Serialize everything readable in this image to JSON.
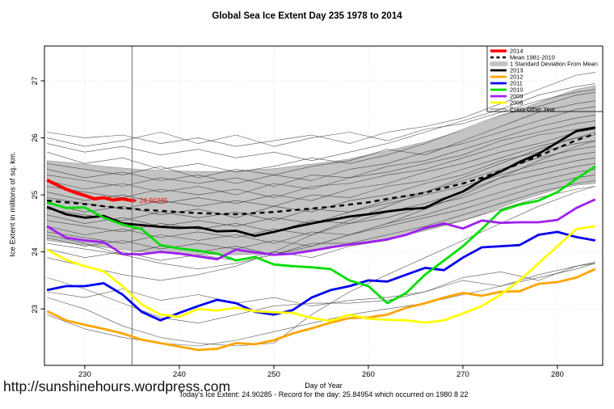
{
  "title": "Global Sea Ice Extent Day 235 1978 to 2014",
  "footer": {
    "url": "http://sunshinehours.wordpress.com",
    "subtitle": "Today's Ice Extent: 24.90285  - Record for the day: 25.84954 which occurred on 1980 8 22"
  },
  "chart_data": {
    "type": "line",
    "title": "Global Sea Ice Extent Day 235 1978 to 2014",
    "xlabel": "Day of Year",
    "ylabel": "Ice Extent in millions of sq. km.",
    "xlim": [
      225.73,
      284.79
    ],
    "ylim": [
      22.01,
      27.61
    ],
    "xticks": [
      230,
      240,
      250,
      260,
      270,
      280
    ],
    "yticks": [
      23,
      24,
      25,
      26,
      27
    ],
    "grid": true,
    "day_marker": 235,
    "annotation": {
      "text": "24.90285",
      "x": 235.5,
      "y": 24.9,
      "color": "#FF0000"
    },
    "x_main": [
      226,
      228,
      230,
      232,
      234,
      236,
      238,
      240,
      242,
      244,
      246,
      248,
      250,
      252,
      254,
      256,
      258,
      260,
      262,
      264,
      266,
      268,
      270,
      272,
      274,
      276,
      278,
      280,
      282,
      284
    ],
    "band": {
      "label": "1 Standard Deviation From Mean",
      "color": "#C4C4C4",
      "edge_color": "#8F8F8F",
      "upper": [
        25.6,
        25.57,
        25.54,
        25.5,
        25.47,
        25.44,
        25.43,
        25.42,
        25.41,
        25.41,
        25.42,
        25.44,
        25.46,
        25.5,
        25.54,
        25.58,
        25.63,
        25.7,
        25.77,
        25.85,
        25.93,
        26.03,
        26.13,
        26.25,
        26.38,
        26.5,
        26.62,
        26.74,
        26.85,
        26.92
      ],
      "lower": [
        24.2,
        24.16,
        24.12,
        24.08,
        24.04,
        24.0,
        23.98,
        23.97,
        23.96,
        23.95,
        23.95,
        23.96,
        23.98,
        24.0,
        24.04,
        24.08,
        24.12,
        24.17,
        24.23,
        24.3,
        24.37,
        24.46,
        24.55,
        24.66,
        24.78,
        24.9,
        25.0,
        25.1,
        25.17,
        25.2
      ]
    },
    "series": [
      {
        "name": "2013",
        "color": "#000000",
        "width": 2.8,
        "dash": "",
        "values": [
          24.79,
          24.66,
          24.6,
          24.63,
          24.5,
          24.47,
          24.44,
          24.42,
          24.43,
          24.36,
          24.37,
          24.28,
          24.35,
          24.43,
          24.5,
          24.56,
          24.62,
          24.66,
          24.71,
          24.75,
          24.77,
          24.93,
          25.06,
          25.26,
          25.41,
          25.58,
          25.72,
          25.92,
          26.12,
          26.18
        ]
      },
      {
        "name": "Mean 1981-2010",
        "color": "#000000",
        "width": 2.4,
        "dash": "6,5",
        "values": [
          24.9,
          24.87,
          24.84,
          24.8,
          24.77,
          24.74,
          24.72,
          24.7,
          24.68,
          24.67,
          24.66,
          24.68,
          24.7,
          24.73,
          24.76,
          24.79,
          24.83,
          24.87,
          24.93,
          24.98,
          25.04,
          25.12,
          25.2,
          25.3,
          25.42,
          25.55,
          25.68,
          25.82,
          25.96,
          26.07
        ]
      },
      {
        "name": "2012",
        "color": "#FFA500",
        "width": 2.8,
        "dash": "",
        "values": [
          22.96,
          22.8,
          22.72,
          22.65,
          22.57,
          22.46,
          22.4,
          22.34,
          22.28,
          22.3,
          22.4,
          22.38,
          22.45,
          22.57,
          22.66,
          22.76,
          22.84,
          22.85,
          22.9,
          23.02,
          23.1,
          23.2,
          23.28,
          23.23,
          23.3,
          23.31,
          23.44,
          23.47,
          23.55,
          23.7
        ]
      },
      {
        "name": "2011",
        "color": "#0000EE",
        "width": 2.8,
        "dash": "",
        "values": [
          23.33,
          23.4,
          23.4,
          23.45,
          23.25,
          22.95,
          22.8,
          22.93,
          23.05,
          23.16,
          23.1,
          22.95,
          22.9,
          22.98,
          23.2,
          23.33,
          23.4,
          23.5,
          23.48,
          23.6,
          23.72,
          23.68,
          23.9,
          24.08,
          24.1,
          24.12,
          24.3,
          24.35,
          24.26,
          24.2
        ]
      },
      {
        "name": "2010",
        "color": "#00DD00",
        "width": 2.8,
        "dash": "",
        "values": [
          24.87,
          24.77,
          24.78,
          24.6,
          24.48,
          24.4,
          24.12,
          24.06,
          24.02,
          23.97,
          23.85,
          23.91,
          23.78,
          23.75,
          23.73,
          23.7,
          23.5,
          23.4,
          23.1,
          23.28,
          23.6,
          23.85,
          24.1,
          24.4,
          24.72,
          24.83,
          24.9,
          25.05,
          25.28,
          25.5
        ]
      },
      {
        "name": "2009",
        "color": "#A020F0",
        "width": 2.8,
        "dash": "",
        "values": [
          24.45,
          24.25,
          24.2,
          24.17,
          23.96,
          23.96,
          24.0,
          23.97,
          23.92,
          23.87,
          24.04,
          23.99,
          23.95,
          23.97,
          24.02,
          24.08,
          24.13,
          24.17,
          24.22,
          24.3,
          24.42,
          24.5,
          24.41,
          24.55,
          24.51,
          24.52,
          24.52,
          24.56,
          24.77,
          24.92
        ]
      },
      {
        "name": "2008",
        "color": "#FFFF00",
        "width": 2.8,
        "dash": "",
        "values": [
          24.04,
          23.86,
          23.75,
          23.66,
          23.4,
          23.08,
          22.9,
          22.86,
          23.0,
          22.97,
          23.02,
          22.96,
          22.94,
          22.93,
          22.84,
          22.79,
          22.9,
          22.83,
          22.81,
          22.8,
          22.76,
          22.8,
          22.92,
          23.05,
          23.25,
          23.5,
          23.8,
          24.1,
          24.4,
          24.45
        ]
      }
    ],
    "series_2014": {
      "name": "2014",
      "color": "#FF0000",
      "width": 4,
      "x": [
        226,
        227,
        228,
        229,
        230,
        231,
        232,
        233,
        234,
        235
      ],
      "values": [
        25.26,
        25.18,
        25.1,
        25.04,
        24.99,
        24.93,
        24.95,
        24.91,
        24.93,
        24.9
      ]
    },
    "every_other_year": {
      "label": "Every Other Year",
      "color": "#333333",
      "width": 0.6,
      "x": [
        226,
        230,
        234,
        238,
        242,
        246,
        250,
        254,
        258,
        262,
        266,
        270,
        274,
        278,
        282,
        284
      ],
      "lines": [
        [
          26.1,
          26.0,
          26.05,
          25.9,
          26.0,
          25.85,
          25.95,
          26.05,
          25.9,
          26.1,
          26.2,
          26.35,
          26.6,
          26.85,
          27.1,
          27.15
        ],
        [
          25.9,
          25.75,
          25.85,
          25.7,
          25.8,
          25.65,
          25.75,
          25.6,
          25.75,
          25.9,
          26.1,
          26.3,
          26.5,
          26.75,
          26.9,
          26.95
        ],
        [
          25.75,
          25.55,
          25.65,
          25.45,
          25.55,
          25.4,
          25.5,
          25.65,
          25.55,
          25.7,
          25.9,
          26.15,
          26.4,
          26.55,
          26.75,
          26.8
        ],
        [
          25.55,
          25.45,
          25.35,
          25.5,
          25.3,
          25.45,
          25.35,
          25.5,
          25.6,
          25.8,
          25.7,
          25.95,
          26.2,
          26.45,
          26.6,
          26.65
        ],
        [
          25.45,
          25.3,
          25.4,
          25.25,
          25.35,
          25.2,
          25.35,
          25.25,
          25.45,
          25.55,
          25.75,
          25.9,
          26.1,
          26.3,
          26.5,
          26.55
        ],
        [
          25.35,
          25.25,
          25.15,
          25.3,
          25.2,
          25.3,
          25.15,
          25.35,
          25.3,
          25.5,
          25.6,
          25.8,
          26.0,
          26.2,
          26.35,
          26.4
        ],
        [
          25.25,
          25.1,
          25.2,
          25.05,
          25.15,
          25.0,
          25.2,
          25.1,
          25.3,
          25.4,
          25.55,
          25.7,
          25.95,
          26.1,
          26.25,
          26.3
        ],
        [
          25.15,
          25.05,
          24.95,
          25.1,
          25.0,
          25.1,
          24.95,
          25.15,
          25.2,
          25.35,
          25.45,
          25.65,
          25.85,
          26.05,
          26.15,
          26.2
        ],
        [
          25.05,
          24.9,
          25.0,
          24.85,
          24.95,
          24.85,
          25.0,
          24.9,
          25.1,
          25.2,
          25.4,
          25.55,
          25.75,
          25.9,
          26.1,
          26.15
        ],
        [
          24.95,
          24.85,
          24.75,
          24.9,
          24.8,
          24.9,
          24.8,
          25.0,
          24.95,
          25.15,
          25.25,
          25.45,
          25.65,
          25.85,
          26.0,
          26.05
        ],
        [
          24.85,
          24.7,
          24.8,
          24.65,
          24.75,
          24.6,
          24.8,
          24.7,
          24.9,
          25.0,
          25.2,
          25.35,
          25.6,
          25.75,
          25.9,
          25.95
        ],
        [
          24.75,
          24.65,
          24.55,
          24.7,
          24.6,
          24.7,
          24.55,
          24.75,
          24.7,
          24.9,
          25.05,
          25.25,
          25.45,
          25.65,
          25.8,
          25.85
        ],
        [
          24.65,
          24.5,
          24.6,
          24.45,
          24.55,
          24.45,
          24.6,
          24.5,
          24.7,
          24.85,
          25.0,
          25.15,
          25.35,
          25.55,
          25.7,
          25.75
        ],
        [
          24.55,
          24.45,
          24.35,
          24.5,
          24.4,
          24.5,
          24.35,
          24.55,
          24.5,
          24.7,
          24.85,
          25.05,
          25.3,
          25.45,
          25.6,
          25.65
        ],
        [
          24.45,
          24.3,
          24.4,
          24.25,
          24.35,
          24.25,
          24.4,
          24.3,
          24.5,
          24.6,
          24.8,
          24.95,
          25.2,
          25.35,
          25.5,
          25.55
        ],
        [
          24.35,
          24.25,
          24.15,
          24.3,
          24.2,
          24.3,
          24.15,
          24.35,
          24.3,
          24.5,
          24.65,
          24.85,
          25.05,
          25.25,
          25.4,
          25.45
        ],
        [
          24.25,
          24.1,
          24.2,
          24.05,
          24.15,
          24.05,
          24.2,
          24.1,
          24.3,
          24.45,
          24.6,
          24.75,
          24.95,
          25.15,
          25.3,
          25.35
        ],
        [
          24.15,
          24.05,
          23.95,
          24.1,
          24.0,
          24.1,
          23.95,
          24.15,
          24.15,
          24.3,
          24.45,
          24.65,
          24.85,
          25.05,
          25.2,
          25.25
        ],
        [
          24.05,
          23.9,
          24.0,
          23.85,
          23.95,
          23.85,
          24.0,
          23.9,
          24.1,
          24.2,
          24.4,
          24.55,
          24.75,
          24.95,
          25.1,
          25.15
        ],
        [
          26.0,
          25.85,
          25.95,
          26.1,
          25.9,
          26.05,
          25.85,
          26.0,
          26.1,
          25.95,
          26.15,
          26.25,
          26.45,
          26.65,
          26.8,
          26.85
        ],
        [
          23.9,
          23.75,
          23.6,
          23.5,
          23.6,
          23.75,
          24.0,
          24.3,
          24.55,
          24.8,
          25.05,
          25.3,
          25.55,
          25.8,
          26.0,
          26.1
        ],
        [
          24.3,
          24.15,
          23.95,
          23.8,
          23.7,
          23.8,
          23.95,
          24.1,
          24.3,
          24.5,
          24.75,
          25.0,
          25.3,
          25.6,
          25.85,
          25.95
        ],
        [
          23.55,
          23.35,
          23.1,
          22.85,
          22.75,
          22.9,
          23.05,
          23.1,
          23.1,
          23.15,
          23.3,
          23.55,
          23.65,
          23.5,
          23.75,
          23.82
        ],
        [
          22.9,
          22.65,
          22.5,
          22.4,
          22.35,
          22.45,
          22.6,
          22.75,
          22.9,
          23.0,
          23.1,
          23.25,
          23.4,
          23.55,
          23.7,
          23.8
        ],
        [
          23.2,
          23.0,
          22.7,
          22.5,
          22.4,
          22.35,
          22.4,
          22.9,
          23.3,
          23.6,
          23.9,
          24.2,
          24.5,
          24.8,
          25.05,
          25.15
        ],
        [
          23.3,
          23.2,
          23.35,
          23.15,
          23.25,
          23.1,
          23.2,
          23.05,
          23.15,
          23.2,
          23.3,
          23.5,
          23.4,
          23.6,
          23.75,
          23.8
        ]
      ]
    },
    "legend": {
      "position": "top-right",
      "items": [
        {
          "label": "2014",
          "type": "line",
          "color": "#FF0000",
          "width": 3.6
        },
        {
          "label": "Mean 1981-2010",
          "type": "dash",
          "color": "#000000",
          "width": 2.4
        },
        {
          "label": "1 Standard Deviation From Mean",
          "type": "band",
          "color": "#C4C4C4",
          "width": 6
        },
        {
          "label": "2013",
          "type": "line",
          "color": "#000000",
          "width": 2.8
        },
        {
          "label": "2012",
          "type": "line",
          "color": "#FFA500",
          "width": 2.8
        },
        {
          "label": "2011",
          "type": "line",
          "color": "#0000EE",
          "width": 2.8
        },
        {
          "label": "2010",
          "type": "line",
          "color": "#00DD00",
          "width": 2.8
        },
        {
          "label": "2009",
          "type": "line",
          "color": "#A020F0",
          "width": 2.8
        },
        {
          "label": "2008",
          "type": "line",
          "color": "#FFFF00",
          "width": 2.8
        },
        {
          "label": "Every Other Year",
          "type": "thin",
          "color": "#333333",
          "width": 0.7
        }
      ]
    }
  }
}
